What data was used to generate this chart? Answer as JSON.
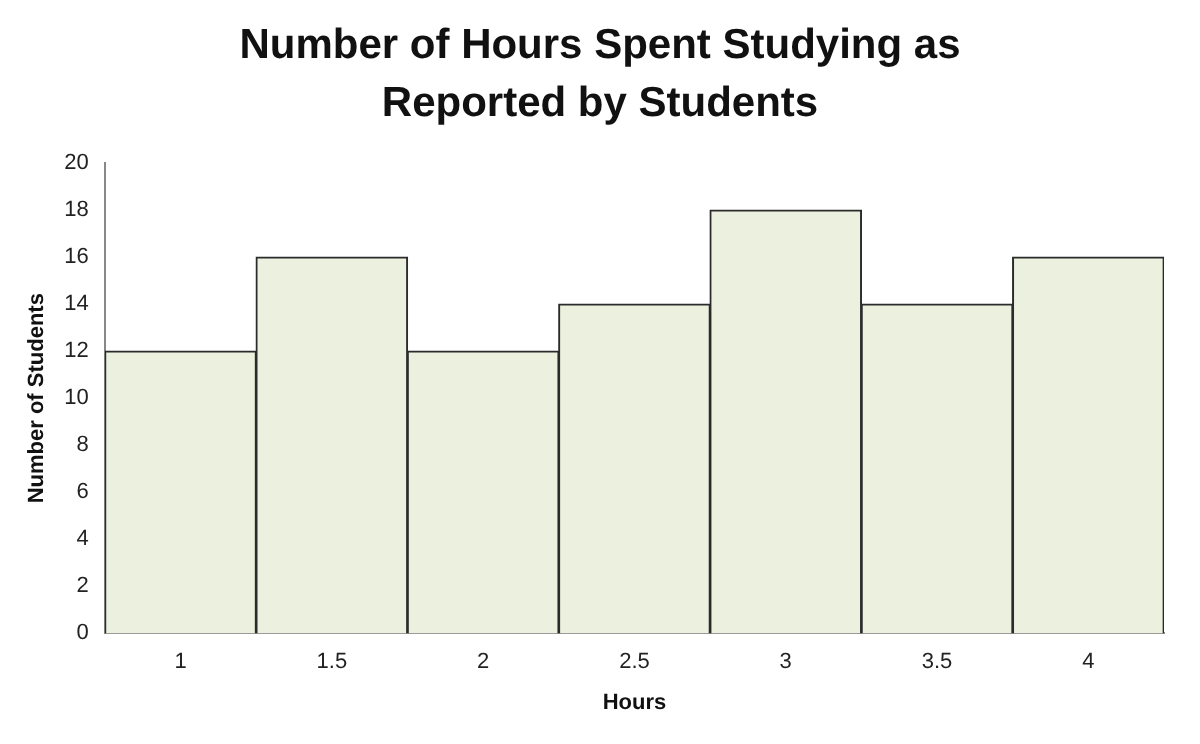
{
  "chart_data": {
    "type": "bar",
    "title": "Number of Hours Spent Studying as Reported by Students",
    "xlabel": "Hours",
    "ylabel": "Number of Students",
    "categories": [
      "1",
      "1.5",
      "2",
      "2.5",
      "3",
      "3.5",
      "4"
    ],
    "values": [
      12,
      16,
      12,
      14,
      18,
      14,
      16
    ],
    "color": "#ebf1de",
    "ylim": [
      0,
      20
    ],
    "yticks": [
      0,
      2,
      4,
      6,
      8,
      10,
      12,
      14,
      16,
      18,
      20
    ],
    "grid": false,
    "legend": false
  }
}
